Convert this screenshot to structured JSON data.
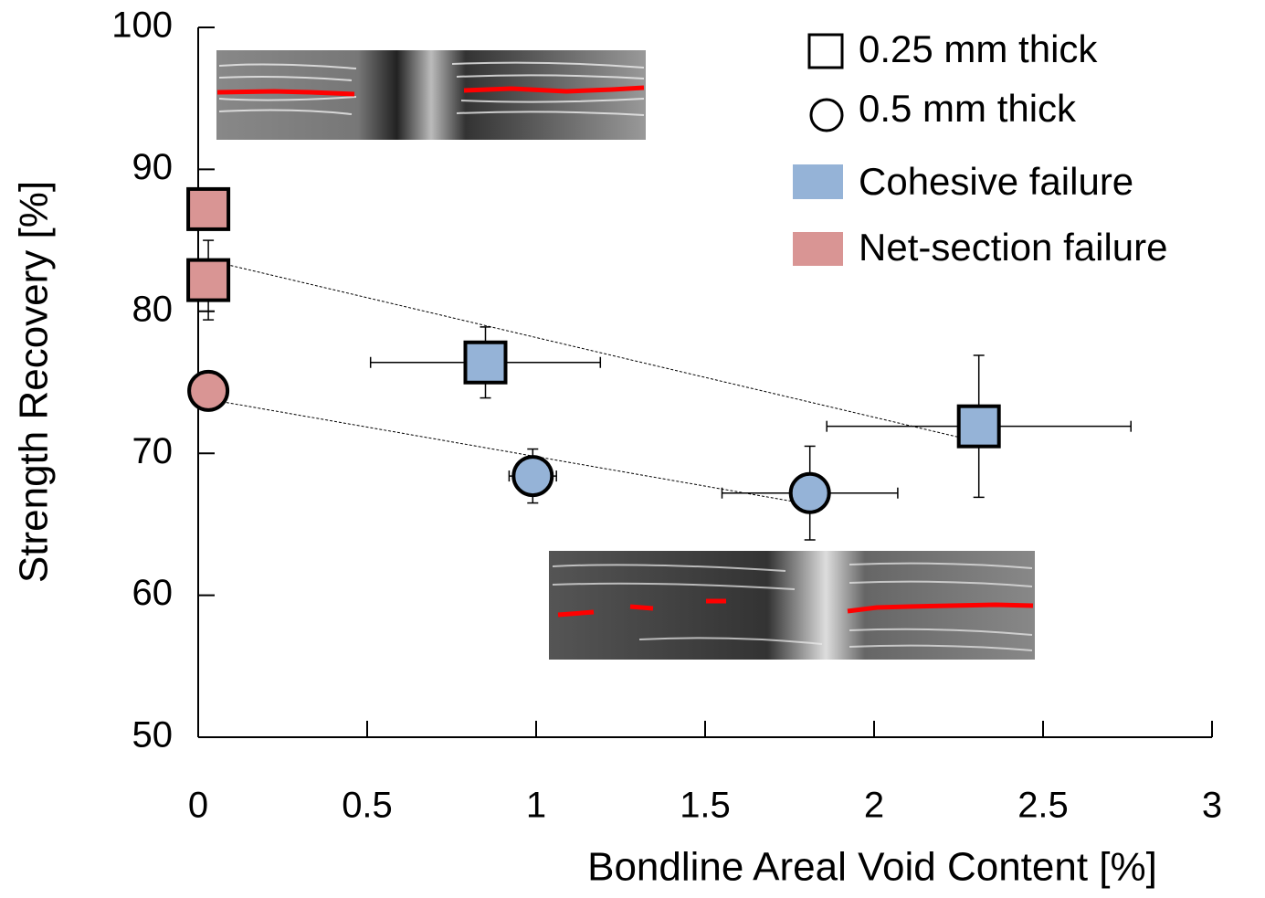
{
  "chart_data": {
    "type": "scatter",
    "xlabel": "Bondline Areal Void Content [%]",
    "ylabel": "Strength Recovery [%]",
    "xlim": [
      0,
      3
    ],
    "xticks": [
      0,
      0.5,
      1,
      1.5,
      2,
      2.5,
      3
    ],
    "ylim": [
      50,
      100
    ],
    "yticks": [
      50,
      60,
      70,
      80,
      90,
      100
    ],
    "grid": false,
    "series": [
      {
        "name": "0.25 mm thick",
        "marker": "square",
        "x": [
          0.03,
          0.03,
          0.85,
          2.31
        ],
        "values": [
          87.2,
          82.2,
          76.4,
          71.9
        ],
        "xerr": [
          null,
          null,
          0.34,
          0.45
        ],
        "yerr": [
          null,
          2.8,
          2.5,
          5.0
        ],
        "colors": [
          "#d99594",
          "#d99594",
          "#95b3d7",
          "#95b3d7"
        ],
        "trend": {
          "x": [
            0.03,
            2.31
          ],
          "values": [
            83.6,
            70.8
          ]
        }
      },
      {
        "name": "0.5 mm thick",
        "marker": "circle",
        "x": [
          0.03,
          0.99,
          1.81
        ],
        "values": [
          74.4,
          68.4,
          67.2
        ],
        "xerr": [
          null,
          0.07,
          0.26
        ],
        "yerr": [
          null,
          1.9,
          3.3
        ],
        "colors": [
          "#d99594",
          "#95b3d7",
          "#95b3d7"
        ],
        "trend": {
          "x": [
            0.03,
            1.81
          ],
          "values": [
            73.8,
            66.4
          ]
        }
      }
    ],
    "failure_modes": [
      {
        "name": "Cohesive failure",
        "color": "#95b3d7"
      },
      {
        "name": "Net-section failure",
        "color": "#d99594"
      }
    ]
  }
}
